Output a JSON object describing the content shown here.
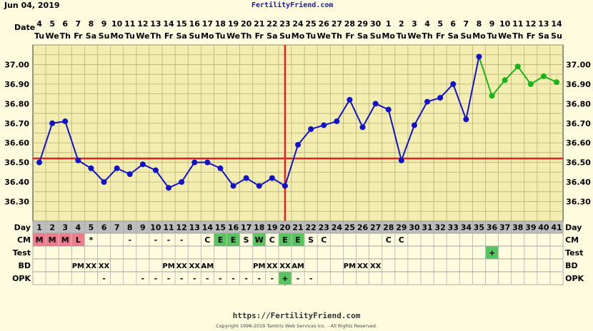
{
  "header": {
    "date": "Jun 04, 2019",
    "site": "FertilityFriend.com"
  },
  "row_labels": {
    "date": "Date",
    "day": "Day",
    "cm": "CM",
    "test": "Test",
    "bd": "BD",
    "opk": "OPK"
  },
  "footer": {
    "url": "https://FertilityFriend.com",
    "copyright": "Copyright 1998-2019 Tamtris Web Services Inc. - All Rights Reserved."
  },
  "colors": {
    "background": "#fffbdf",
    "plot_bg": "#f3eeb0",
    "grid": "#b8b07a",
    "line": "#1212c8",
    "post_line": "#18b418",
    "coverline": "#e52020",
    "cm_dry": "#f07a8c",
    "cm_fertile": "#57c65f"
  },
  "chart_data": {
    "type": "line",
    "title": "",
    "xlabel": "Day",
    "ylabel": "",
    "ylim": [
      36.2,
      37.1
    ],
    "yticks": [
      "36.30",
      "36.40",
      "36.50",
      "36.60",
      "36.70",
      "36.80",
      "36.90",
      "37.00"
    ],
    "coverline": 36.52,
    "ovulation_day": 20,
    "dates": [
      "4",
      "5",
      "6",
      "7",
      "8",
      "9",
      "10",
      "11",
      "12",
      "13",
      "14",
      "15",
      "16",
      "17",
      "18",
      "19",
      "20",
      "21",
      "22",
      "23",
      "24",
      "25",
      "26",
      "27",
      "28",
      "29",
      "30",
      "1",
      "2",
      "3",
      "4",
      "5",
      "6",
      "7",
      "8",
      "9",
      "10",
      "11",
      "12",
      "13",
      "14"
    ],
    "weekdays": [
      "Tu",
      "We",
      "Th",
      "Fr",
      "Sa",
      "Su",
      "Mo",
      "Tu",
      "We",
      "Th",
      "Fr",
      "Sa",
      "Su",
      "Mo",
      "Tu",
      "We",
      "Th",
      "Fr",
      "Sa",
      "Su",
      "Mo",
      "Tu",
      "We",
      "Th",
      "Fr",
      "Sa",
      "Su",
      "Mo",
      "Tu",
      "We",
      "Th",
      "Fr",
      "Sa",
      "Su",
      "Mo",
      "Tu",
      "We",
      "Th",
      "Fr",
      "Sa",
      "Su"
    ],
    "days": [
      1,
      2,
      3,
      4,
      5,
      6,
      7,
      8,
      9,
      10,
      11,
      12,
      13,
      14,
      15,
      16,
      17,
      18,
      19,
      20,
      21,
      22,
      23,
      24,
      25,
      26,
      27,
      28,
      29,
      30,
      31,
      32,
      33,
      34,
      35,
      36,
      37,
      38,
      39,
      40,
      41
    ],
    "series": [
      {
        "values": [
          36.5,
          36.7,
          36.71,
          36.51,
          36.47,
          36.4,
          36.47,
          36.44,
          36.49,
          36.46,
          36.37,
          36.4,
          36.5,
          36.5,
          36.47,
          36.38,
          36.42,
          36.38,
          36.42,
          36.38,
          36.59,
          36.67,
          36.69,
          36.71,
          36.82,
          36.68,
          36.8,
          36.77,
          36.51,
          36.69,
          36.81,
          36.83,
          36.9,
          36.72,
          37.04,
          36.84,
          36.92,
          36.99,
          36.9,
          36.94,
          36.91
        ]
      }
    ],
    "cm": [
      "M",
      "M",
      "M",
      "L",
      "*",
      "",
      "",
      "-",
      "",
      "-",
      "-",
      "-",
      "",
      "C",
      "E",
      "E",
      "S",
      "W",
      "C",
      "E",
      "E",
      "S",
      "C",
      "",
      "",
      "",
      "",
      "C",
      "C",
      "",
      "",
      "",
      "",
      "",
      "",
      "",
      "",
      "",
      "",
      "",
      ""
    ],
    "cm_colors": [
      "dry",
      "dry",
      "dry",
      "dry",
      "",
      "",
      "",
      "",
      "",
      "",
      "",
      "",
      "",
      "",
      "fertile",
      "fertile",
      "",
      "fertile",
      "",
      "fertile",
      "fertile",
      "",
      "",
      "",
      "",
      "",
      "",
      "",
      "",
      "",
      "",
      "",
      "",
      "",
      "",
      "",
      "",
      "",
      "",
      "",
      ""
    ],
    "test": [
      "",
      "",
      "",
      "",
      "",
      "",
      "",
      "",
      "",
      "",
      "",
      "",
      "",
      "",
      "",
      "",
      "",
      "",
      "",
      "",
      "",
      "",
      "",
      "",
      "",
      "",
      "",
      "",
      "",
      "",
      "",
      "",
      "",
      "",
      "",
      "+",
      "",
      "",
      "",
      "",
      ""
    ],
    "bd": [
      "",
      "",
      "",
      "PM",
      "XX",
      "XX",
      "",
      "",
      "",
      "",
      "PM",
      "XX",
      "XX",
      "AM",
      "",
      "",
      "",
      "PM",
      "XX",
      "XX",
      "AM",
      "",
      "",
      "",
      "PM",
      "XX",
      "XX",
      "",
      "",
      "",
      "",
      "",
      "",
      "",
      "",
      "",
      "",
      "",
      "",
      "",
      ""
    ],
    "opk": [
      "",
      "",
      "",
      "",
      "",
      "-",
      "",
      "",
      "-",
      "-",
      "-",
      "-",
      "-",
      "-",
      "-",
      "-",
      "-",
      "-",
      "-",
      "+",
      "-",
      "-",
      "",
      "",
      "",
      "",
      "",
      "",
      "",
      "",
      "",
      "",
      "",
      "",
      "",
      "",
      "",
      "",
      "",
      "",
      ""
    ]
  }
}
